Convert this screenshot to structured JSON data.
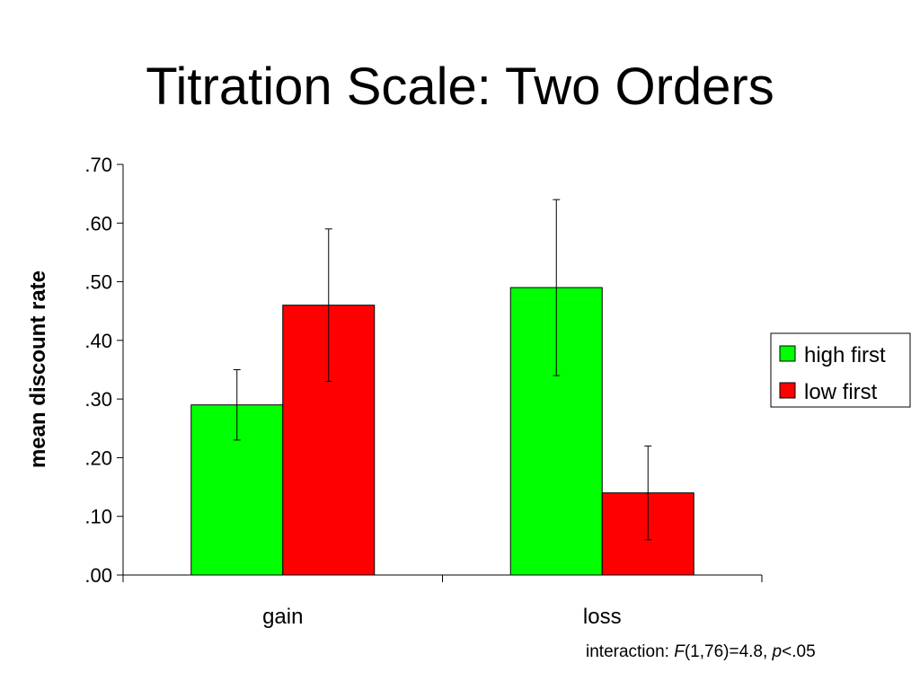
{
  "title": "Titration Scale: Two Orders",
  "note": {
    "prefix": "interaction: ",
    "stat_symbol": "F",
    "stat_value": "(1,76)=4.8, ",
    "p_symbol": "p",
    "p_value": "<.05"
  },
  "chart_data": {
    "type": "bar",
    "title": "",
    "xlabel": "",
    "ylabel": "mean discount rate",
    "categories": [
      "gain",
      "loss"
    ],
    "ylim": [
      0,
      0.7
    ],
    "yticks": [
      0,
      0.1,
      0.2,
      0.3,
      0.4,
      0.5,
      0.6,
      0.7
    ],
    "ytick_labels": [
      ".00",
      ".10",
      ".20",
      ".30",
      ".40",
      ".50",
      ".60",
      ".70"
    ],
    "grid": false,
    "legend_position": "right",
    "series": [
      {
        "name": "high first",
        "color": "#00ff00",
        "values": [
          0.29,
          0.49
        ],
        "error_low": [
          0.23,
          0.34
        ],
        "error_high": [
          0.35,
          0.64
        ]
      },
      {
        "name": "low first",
        "color": "#ff0000",
        "values": [
          0.46,
          0.14
        ],
        "error_low": [
          0.33,
          0.06
        ],
        "error_high": [
          0.59,
          0.22
        ]
      }
    ]
  }
}
